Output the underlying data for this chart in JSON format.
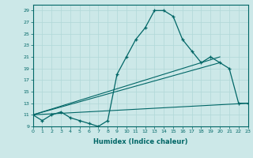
{
  "xlabel": "Humidex (Indice chaleur)",
  "ylabel": "",
  "bg_color": "#cce8e8",
  "line_color": "#006666",
  "xlim": [
    0,
    23
  ],
  "ylim": [
    9,
    30
  ],
  "yticks": [
    9,
    11,
    13,
    15,
    17,
    19,
    21,
    23,
    25,
    27,
    29
  ],
  "xticks": [
    0,
    1,
    2,
    3,
    4,
    5,
    6,
    7,
    8,
    9,
    10,
    11,
    12,
    13,
    14,
    15,
    16,
    17,
    18,
    19,
    20,
    21,
    22,
    23
  ],
  "line1_x": [
    0,
    1,
    2,
    3,
    4,
    5,
    6,
    7,
    8,
    9,
    10,
    11,
    12,
    13,
    14,
    15,
    16,
    17,
    18,
    19,
    20,
    21,
    22,
    23
  ],
  "line1_y": [
    11,
    10,
    11,
    11.5,
    10.5,
    10,
    9.5,
    9,
    10,
    18,
    21,
    24,
    26,
    29,
    29,
    28,
    24,
    22,
    20,
    21,
    20,
    19,
    13,
    13
  ],
  "line2_x": [
    0,
    20
  ],
  "line2_y": [
    11,
    21
  ],
  "line3_x": [
    0,
    20
  ],
  "line3_y": [
    11,
    20
  ],
  "line4_x": [
    0,
    23
  ],
  "line4_y": [
    11,
    13
  ],
  "grid_major_color": "#b0d8d8",
  "grid_minor_color": "#c8e8e8"
}
